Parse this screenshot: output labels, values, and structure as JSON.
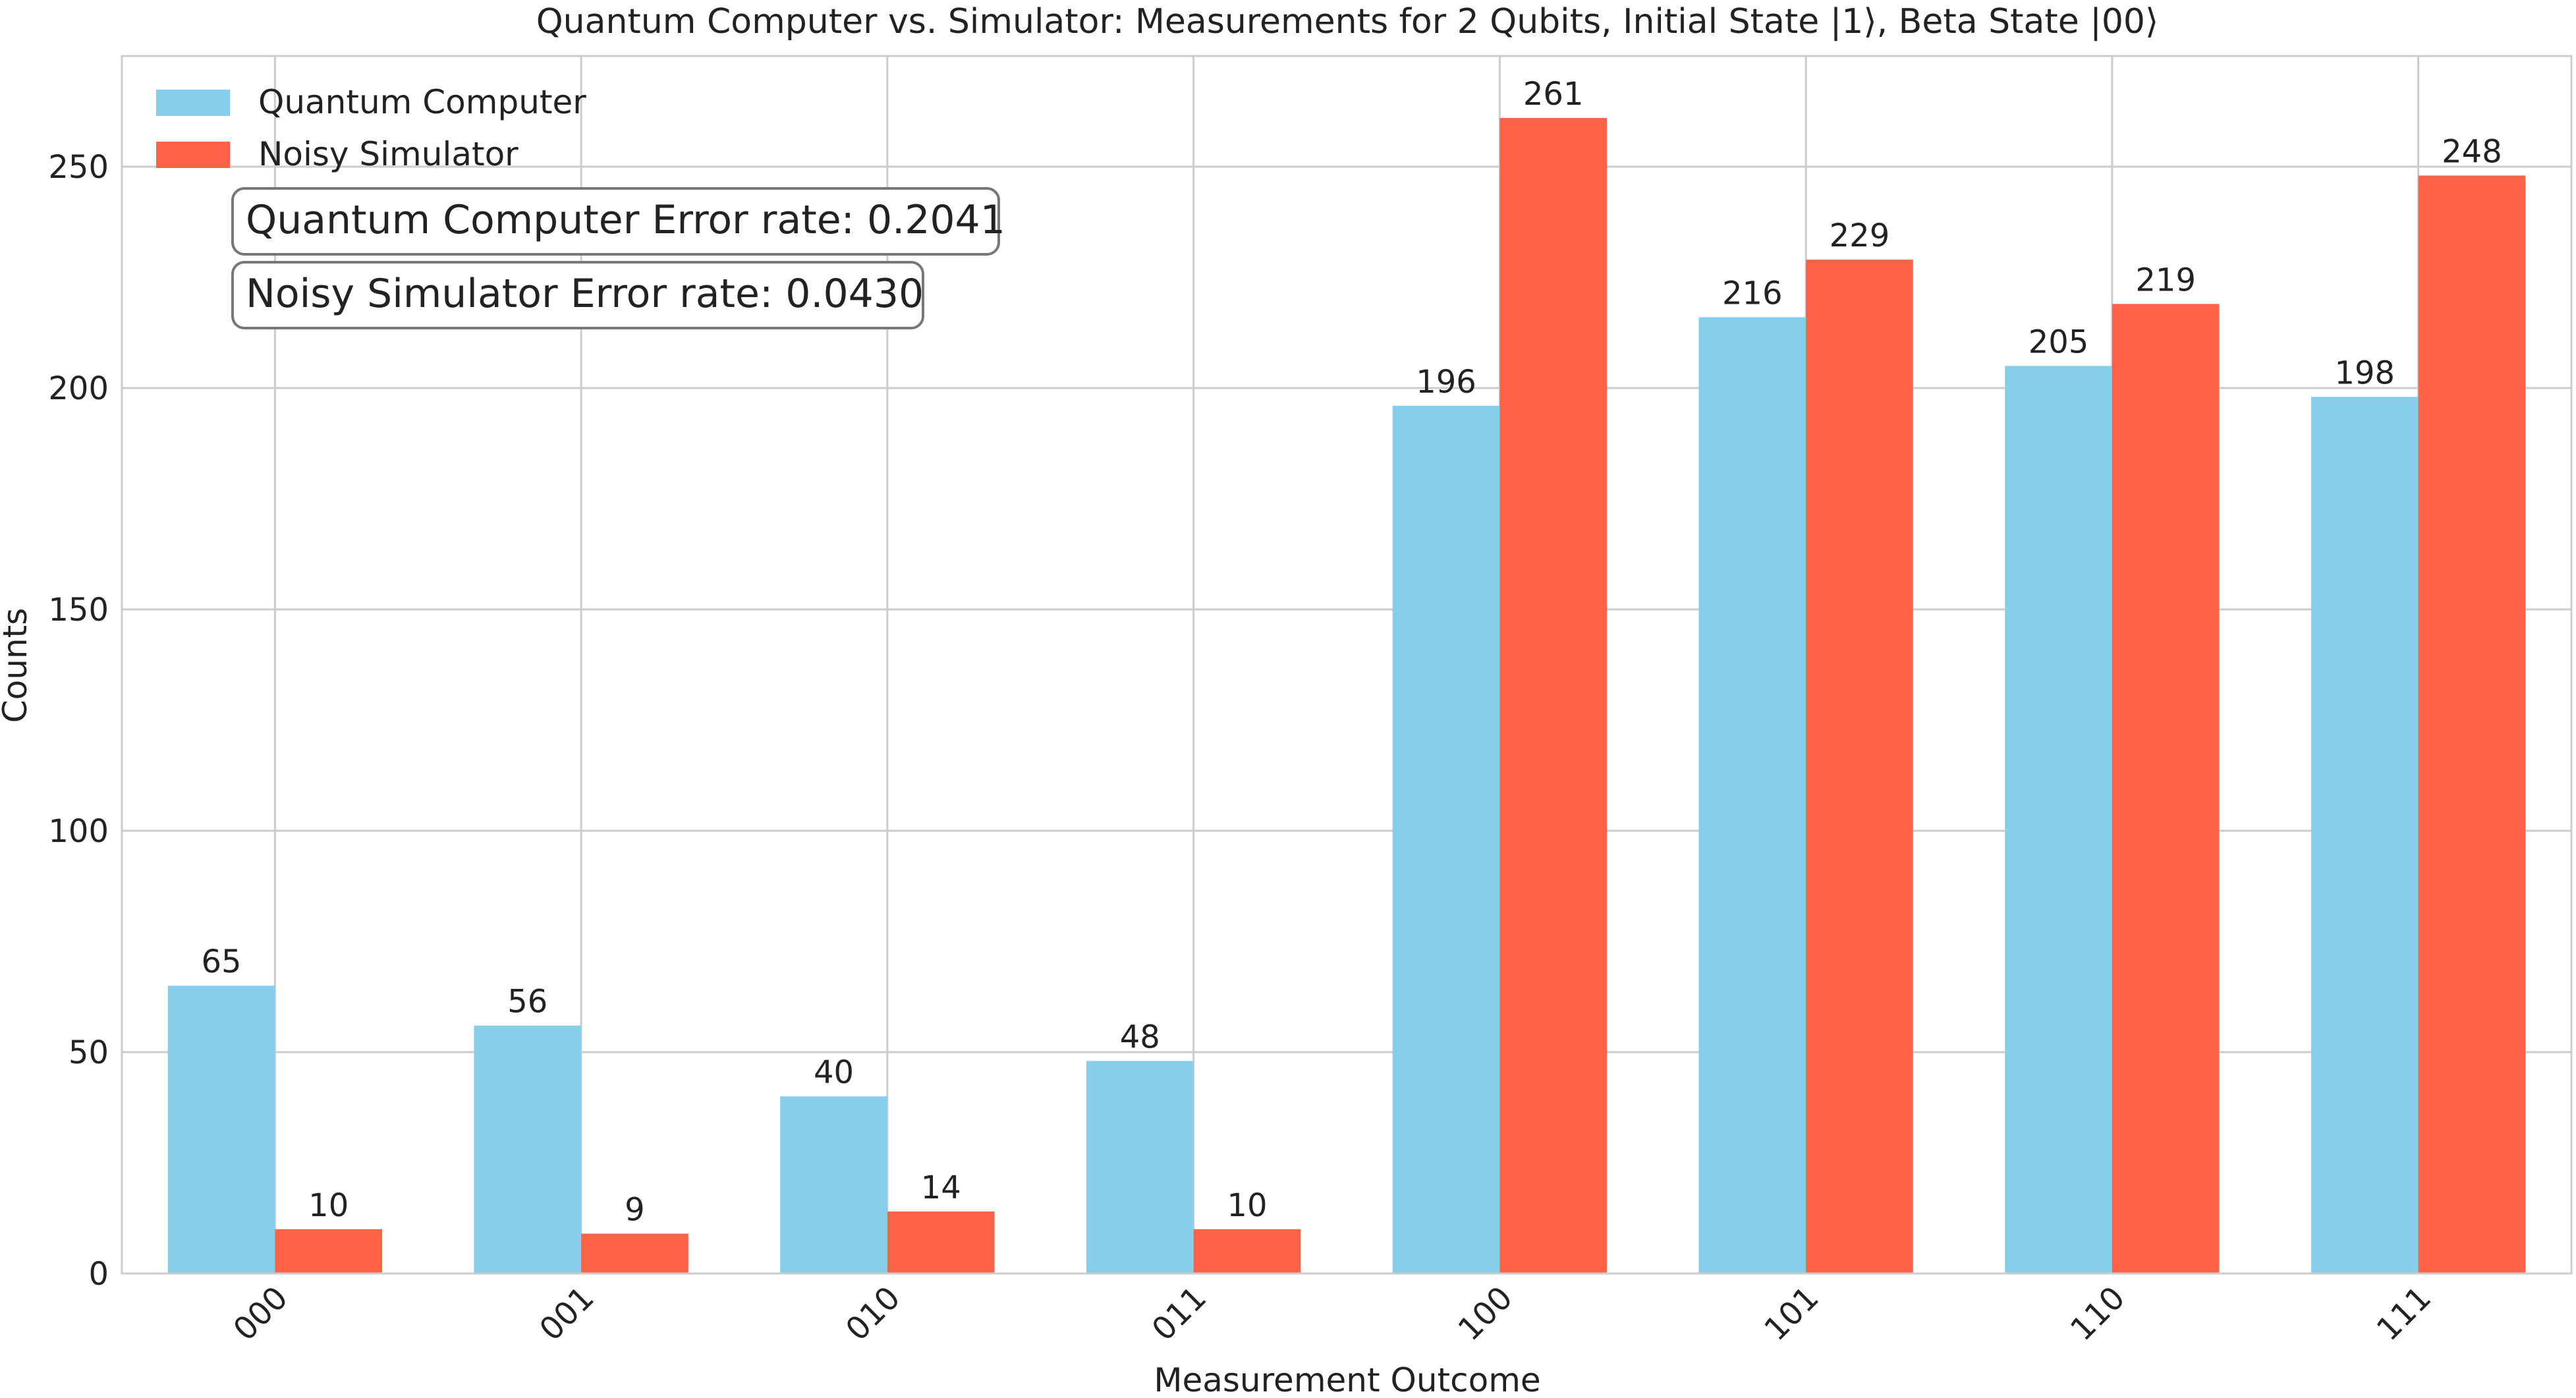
{
  "chart_data": {
    "type": "bar",
    "title": "Quantum Computer vs. Simulator: Measurements for 2 Qubits, Initial State |1⟩, Beta State |00⟩",
    "xlabel": "Measurement Outcome",
    "ylabel": "Counts",
    "categories": [
      "000",
      "001",
      "010",
      "011",
      "100",
      "101",
      "110",
      "111"
    ],
    "series": [
      {
        "name": "Quantum Computer",
        "color": "#87CEEB",
        "values": [
          65,
          56,
          40,
          48,
          196,
          216,
          205,
          198
        ]
      },
      {
        "name": "Noisy Simulator",
        "color": "#FF6347",
        "values": [
          10,
          9,
          14,
          10,
          261,
          229,
          219,
          248
        ]
      }
    ],
    "ylim": [
      0,
      275
    ],
    "yticks": [
      0,
      50,
      100,
      150,
      200,
      250
    ],
    "grid": true,
    "legend_position": "top-left",
    "xtick_rotation": 45,
    "annotations": [
      "Quantum Computer Error rate: 0.2041",
      "Noisy Simulator Error rate: 0.0430"
    ]
  }
}
